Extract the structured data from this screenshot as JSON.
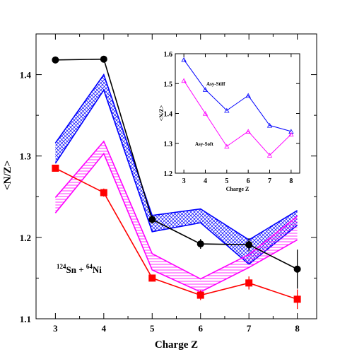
{
  "chart_data": [
    {
      "type": "line",
      "xlabel": "Charge Z",
      "ylabel": "<N/Z>",
      "xlim": [
        2.6,
        8.4
      ],
      "ylim": [
        1.1,
        1.45
      ],
      "xticks": [
        3,
        4,
        5,
        6,
        7,
        8
      ],
      "yticks": [
        1.1,
        1.2,
        1.3,
        1.4
      ],
      "annotation": {
        "mass1": "124",
        "sym1": "Sn + ",
        "mass2": "64",
        "sym2": "Ni"
      },
      "series": [
        {
          "color": "#000000",
          "marker": "circle",
          "x": [
            3,
            4,
            5,
            6,
            7,
            8
          ],
          "y": [
            1.418,
            1.419,
            1.222,
            1.192,
            1.191,
            1.161
          ],
          "yerr": [
            0,
            0,
            0.005,
            0.006,
            0.008,
            0.024
          ]
        },
        {
          "color": "#ff0000",
          "marker": "square",
          "x": [
            3,
            4,
            5,
            6,
            7,
            8
          ],
          "y": [
            1.285,
            1.255,
            1.15,
            1.129,
            1.144,
            1.124
          ],
          "yerr": [
            0,
            0.005,
            0.004,
            0.006,
            0.008,
            0.012
          ]
        }
      ],
      "bands": [
        {
          "color": "#0000ff",
          "pattern": "crosshatch",
          "x": [
            3,
            4,
            5,
            6,
            7,
            8
          ],
          "upper": [
            1.316,
            1.4,
            1.227,
            1.235,
            1.197,
            1.233
          ],
          "lower": [
            1.291,
            1.381,
            1.207,
            1.218,
            1.167,
            1.215
          ]
        },
        {
          "color": "#ff00ff",
          "pattern": "hlines",
          "x": [
            3,
            4,
            5,
            6,
            7,
            8
          ],
          "upper": [
            1.249,
            1.318,
            1.18,
            1.149,
            1.179,
            1.226
          ],
          "lower": [
            1.23,
            1.303,
            1.16,
            1.133,
            1.163,
            1.197
          ]
        }
      ]
    },
    {
      "type": "line",
      "xlabel": "Charge Z",
      "ylabel": "<N/Z>",
      "xlim": [
        2.6,
        8.4
      ],
      "ylim": [
        1.2,
        1.6
      ],
      "xticks": [
        3,
        4,
        5,
        6,
        7,
        8
      ],
      "yticks": [
        1.2,
        1.3,
        1.4,
        1.5,
        1.6
      ],
      "series": [
        {
          "name": "Asy-Stiff",
          "color": "#0000ff",
          "marker": "triangle",
          "x": [
            3,
            4,
            5,
            6,
            7,
            8
          ],
          "y": [
            1.58,
            1.48,
            1.41,
            1.46,
            1.36,
            1.34
          ]
        },
        {
          "name": "Asy-Soft",
          "color": "#ff00ff",
          "marker": "triangle",
          "x": [
            3,
            4,
            5,
            6,
            7,
            8
          ],
          "y": [
            1.51,
            1.4,
            1.29,
            1.34,
            1.26,
            1.33
          ]
        }
      ]
    }
  ]
}
